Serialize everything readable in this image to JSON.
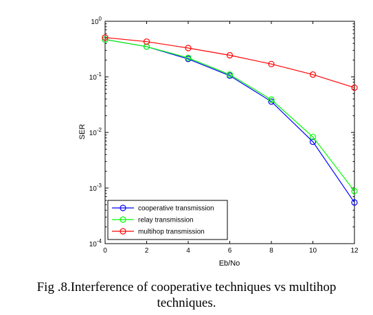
{
  "chart_data": {
    "type": "line",
    "title": "",
    "xlabel": "Eb/No",
    "ylabel": "SER",
    "xlim": [
      0,
      12
    ],
    "ylim": [
      0.0001,
      1
    ],
    "yscale": "log",
    "xticks": [
      "0",
      "2",
      "4",
      "6",
      "8",
      "10",
      "12"
    ],
    "yticks": [
      {
        "value": 1,
        "mantissa": "10",
        "exp": "0"
      },
      {
        "value": 0.1,
        "mantissa": "10",
        "exp": "-1"
      },
      {
        "value": 0.01,
        "mantissa": "10",
        "exp": "-2"
      },
      {
        "value": 0.001,
        "mantissa": "10",
        "exp": "-3"
      },
      {
        "value": 0.0001,
        "mantissa": "10",
        "exp": "-4"
      }
    ],
    "grid": false,
    "legend": "bottom-left",
    "x": [
      0,
      2,
      4,
      6,
      8,
      10,
      12
    ],
    "series": [
      {
        "name": "cooperative transmission",
        "color": "#0000ff",
        "values": [
          0.47,
          0.35,
          0.21,
          0.105,
          0.036,
          0.0068,
          0.00055
        ]
      },
      {
        "name": "relay transmission",
        "color": "#00ff00",
        "values": [
          0.47,
          0.35,
          0.22,
          0.11,
          0.039,
          0.0083,
          0.00088
        ]
      },
      {
        "name": "multihop transmission",
        "color": "#ff0000",
        "values": [
          0.51,
          0.43,
          0.33,
          0.245,
          0.17,
          0.11,
          0.064
        ]
      }
    ]
  },
  "caption": {
    "line1": "Fig .8.Interference of cooperative techniques vs multihop",
    "line2": "techniques."
  }
}
